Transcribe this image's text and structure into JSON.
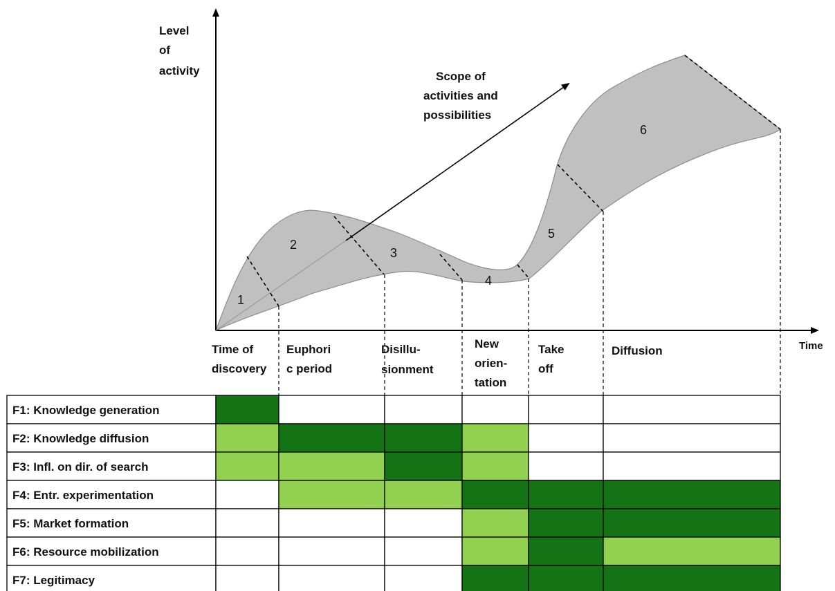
{
  "axes": {
    "y_label": [
      "Level",
      "of",
      "activity"
    ],
    "x_label": "Time"
  },
  "scope_label": [
    "Scope of",
    "activities and",
    "possibilities"
  ],
  "phase_numbers": [
    "1",
    "2",
    "3",
    "4",
    "5",
    "6"
  ],
  "phases": [
    {
      "lines": [
        "Time of",
        "discovery"
      ]
    },
    {
      "lines": [
        "Euphori",
        "c period"
      ]
    },
    {
      "lines": [
        "Disillu-",
        "sionment"
      ]
    },
    {
      "lines": [
        "New",
        "orien-",
        "tation"
      ]
    },
    {
      "lines": [
        "Take",
        "off"
      ]
    },
    {
      "lines": [
        "Diffusion"
      ]
    }
  ],
  "colors": {
    "dark": "#147314",
    "light": "#92d050",
    "none": "#ffffff",
    "curve_fill": "#c0c0c0",
    "curve_stroke": "#8c8c8c"
  },
  "table": {
    "rows": [
      {
        "label": "F1: Knowledge generation",
        "cells": [
          "dark",
          "none",
          "none",
          "none",
          "none",
          "none"
        ]
      },
      {
        "label": "F2: Knowledge diffusion",
        "cells": [
          "light",
          "dark",
          "dark",
          "light",
          "none",
          "none"
        ]
      },
      {
        "label": "F3: Infl. on dir. of search",
        "cells": [
          "light",
          "light",
          "dark",
          "light",
          "none",
          "none"
        ]
      },
      {
        "label": "F4: Entr. experimentation",
        "cells": [
          "none",
          "light",
          "light",
          "dark",
          "dark",
          "dark"
        ]
      },
      {
        "label": "F5: Market formation",
        "cells": [
          "none",
          "none",
          "none",
          "light",
          "dark",
          "dark"
        ]
      },
      {
        "label": "F6: Resource mobilization",
        "cells": [
          "none",
          "none",
          "none",
          "light",
          "dark",
          "light"
        ]
      },
      {
        "label": "F7: Legitimacy",
        "cells": [
          "none",
          "none",
          "none",
          "dark",
          "dark",
          "dark"
        ]
      }
    ]
  }
}
